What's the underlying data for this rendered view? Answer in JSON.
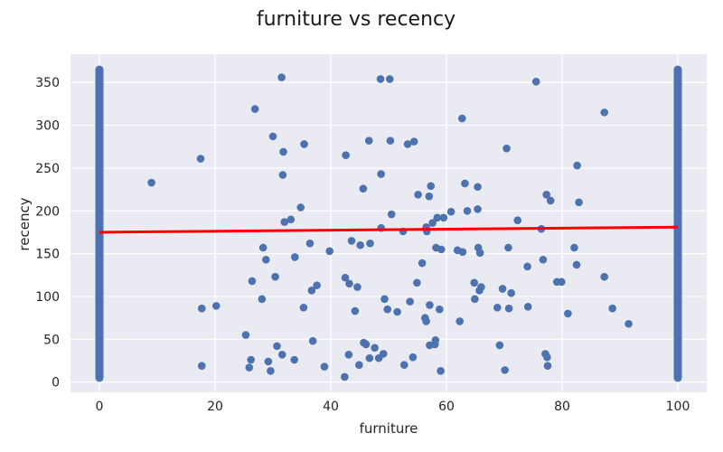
{
  "chart_data": {
    "type": "scatter",
    "title": "furniture vs recency",
    "xlabel": "furniture",
    "ylabel": "recency",
    "xlim": [
      -5,
      105
    ],
    "ylim": [
      -12,
      383
    ],
    "x_ticks": [
      0,
      20,
      40,
      60,
      80,
      100
    ],
    "y_ticks": [
      0,
      50,
      100,
      150,
      200,
      250,
      300,
      350
    ],
    "grid": true,
    "background": "#EAEAF2",
    "point_color": "#4C72B0",
    "line_color": "#FF0000",
    "vertical_bands": [
      {
        "x": 0,
        "y_range": [
          5,
          365
        ]
      },
      {
        "x": 100,
        "y_range": [
          5,
          365
        ]
      }
    ],
    "regression_line": {
      "x": [
        0,
        100
      ],
      "y": [
        175,
        181
      ]
    },
    "points": [
      [
        9,
        233
      ],
      [
        17.5,
        261
      ],
      [
        17.7,
        86
      ],
      [
        17.7,
        19
      ],
      [
        20.2,
        89
      ],
      [
        25.3,
        55
      ],
      [
        25.9,
        17
      ],
      [
        26.2,
        26
      ],
      [
        26.4,
        118
      ],
      [
        26.9,
        319
      ],
      [
        28.1,
        97
      ],
      [
        28.3,
        157
      ],
      [
        28.8,
        143
      ],
      [
        29.2,
        24
      ],
      [
        29.6,
        13
      ],
      [
        30.0,
        287
      ],
      [
        30.4,
        123
      ],
      [
        30.7,
        42
      ],
      [
        31.5,
        356
      ],
      [
        31.6,
        32
      ],
      [
        31.7,
        242
      ],
      [
        31.8,
        269
      ],
      [
        32.0,
        187
      ],
      [
        33.1,
        190
      ],
      [
        33.7,
        26
      ],
      [
        33.8,
        146
      ],
      [
        34.8,
        204
      ],
      [
        35.3,
        87
      ],
      [
        35.4,
        278
      ],
      [
        36.4,
        162
      ],
      [
        36.7,
        107
      ],
      [
        36.9,
        48
      ],
      [
        37.6,
        113
      ],
      [
        38.9,
        18
      ],
      [
        39.8,
        153
      ],
      [
        42.4,
        6
      ],
      [
        42.5,
        122
      ],
      [
        42.6,
        265
      ],
      [
        43.1,
        32
      ],
      [
        43.2,
        115
      ],
      [
        43.6,
        165
      ],
      [
        44.2,
        83
      ],
      [
        44.6,
        111
      ],
      [
        44.9,
        20
      ],
      [
        45.1,
        160
      ],
      [
        45.6,
        226
      ],
      [
        45.7,
        46
      ],
      [
        46.1,
        44
      ],
      [
        46.6,
        282
      ],
      [
        46.7,
        28
      ],
      [
        46.8,
        162
      ],
      [
        47.6,
        40
      ],
      [
        48.3,
        28
      ],
      [
        48.6,
        354
      ],
      [
        48.7,
        180
      ],
      [
        48.7,
        243
      ],
      [
        49.1,
        33
      ],
      [
        49.3,
        97
      ],
      [
        49.8,
        85
      ],
      [
        50.2,
        354
      ],
      [
        50.3,
        282
      ],
      [
        50.5,
        196
      ],
      [
        51.5,
        82
      ],
      [
        52.5,
        176
      ],
      [
        52.7,
        20
      ],
      [
        53.3,
        278
      ],
      [
        53.7,
        94
      ],
      [
        54.2,
        29
      ],
      [
        54.4,
        281
      ],
      [
        54.9,
        116
      ],
      [
        55.1,
        219
      ],
      [
        55.8,
        139
      ],
      [
        56.3,
        75
      ],
      [
        56.5,
        181
      ],
      [
        56.5,
        71
      ],
      [
        56.6,
        176
      ],
      [
        57.0,
        217
      ],
      [
        57.1,
        90
      ],
      [
        57.1,
        43
      ],
      [
        57.3,
        229
      ],
      [
        57.6,
        186
      ],
      [
        58.0,
        44
      ],
      [
        58.1,
        49
      ],
      [
        58.2,
        157
      ],
      [
        58.4,
        192
      ],
      [
        58.8,
        85
      ],
      [
        59.0,
        13
      ],
      [
        59.1,
        155
      ],
      [
        59.5,
        192
      ],
      [
        60.8,
        199
      ],
      [
        61.9,
        154
      ],
      [
        62.3,
        71
      ],
      [
        62.7,
        308
      ],
      [
        62.8,
        152
      ],
      [
        63.2,
        232
      ],
      [
        63.6,
        200
      ],
      [
        64.8,
        116
      ],
      [
        64.9,
        97
      ],
      [
        65.4,
        202
      ],
      [
        65.4,
        228
      ],
      [
        65.5,
        157
      ],
      [
        65.7,
        107
      ],
      [
        65.8,
        151
      ],
      [
        66.0,
        111
      ],
      [
        68.8,
        87
      ],
      [
        69.2,
        43
      ],
      [
        69.7,
        109
      ],
      [
        70.1,
        14
      ],
      [
        70.4,
        273
      ],
      [
        70.7,
        157
      ],
      [
        70.8,
        86
      ],
      [
        71.2,
        104
      ],
      [
        72.3,
        189
      ],
      [
        74.0,
        135
      ],
      [
        74.1,
        88
      ],
      [
        75.5,
        351
      ],
      [
        76.4,
        179
      ],
      [
        76.7,
        143
      ],
      [
        77.1,
        33
      ],
      [
        77.3,
        219
      ],
      [
        77.4,
        29
      ],
      [
        77.5,
        19
      ],
      [
        78.0,
        212
      ],
      [
        79.1,
        117
      ],
      [
        79.9,
        117
      ],
      [
        81.0,
        80
      ],
      [
        82.1,
        157
      ],
      [
        82.5,
        137
      ],
      [
        82.6,
        253
      ],
      [
        82.9,
        210
      ],
      [
        87.3,
        315
      ],
      [
        87.3,
        123
      ],
      [
        88.7,
        86
      ],
      [
        91.5,
        68
      ]
    ]
  }
}
